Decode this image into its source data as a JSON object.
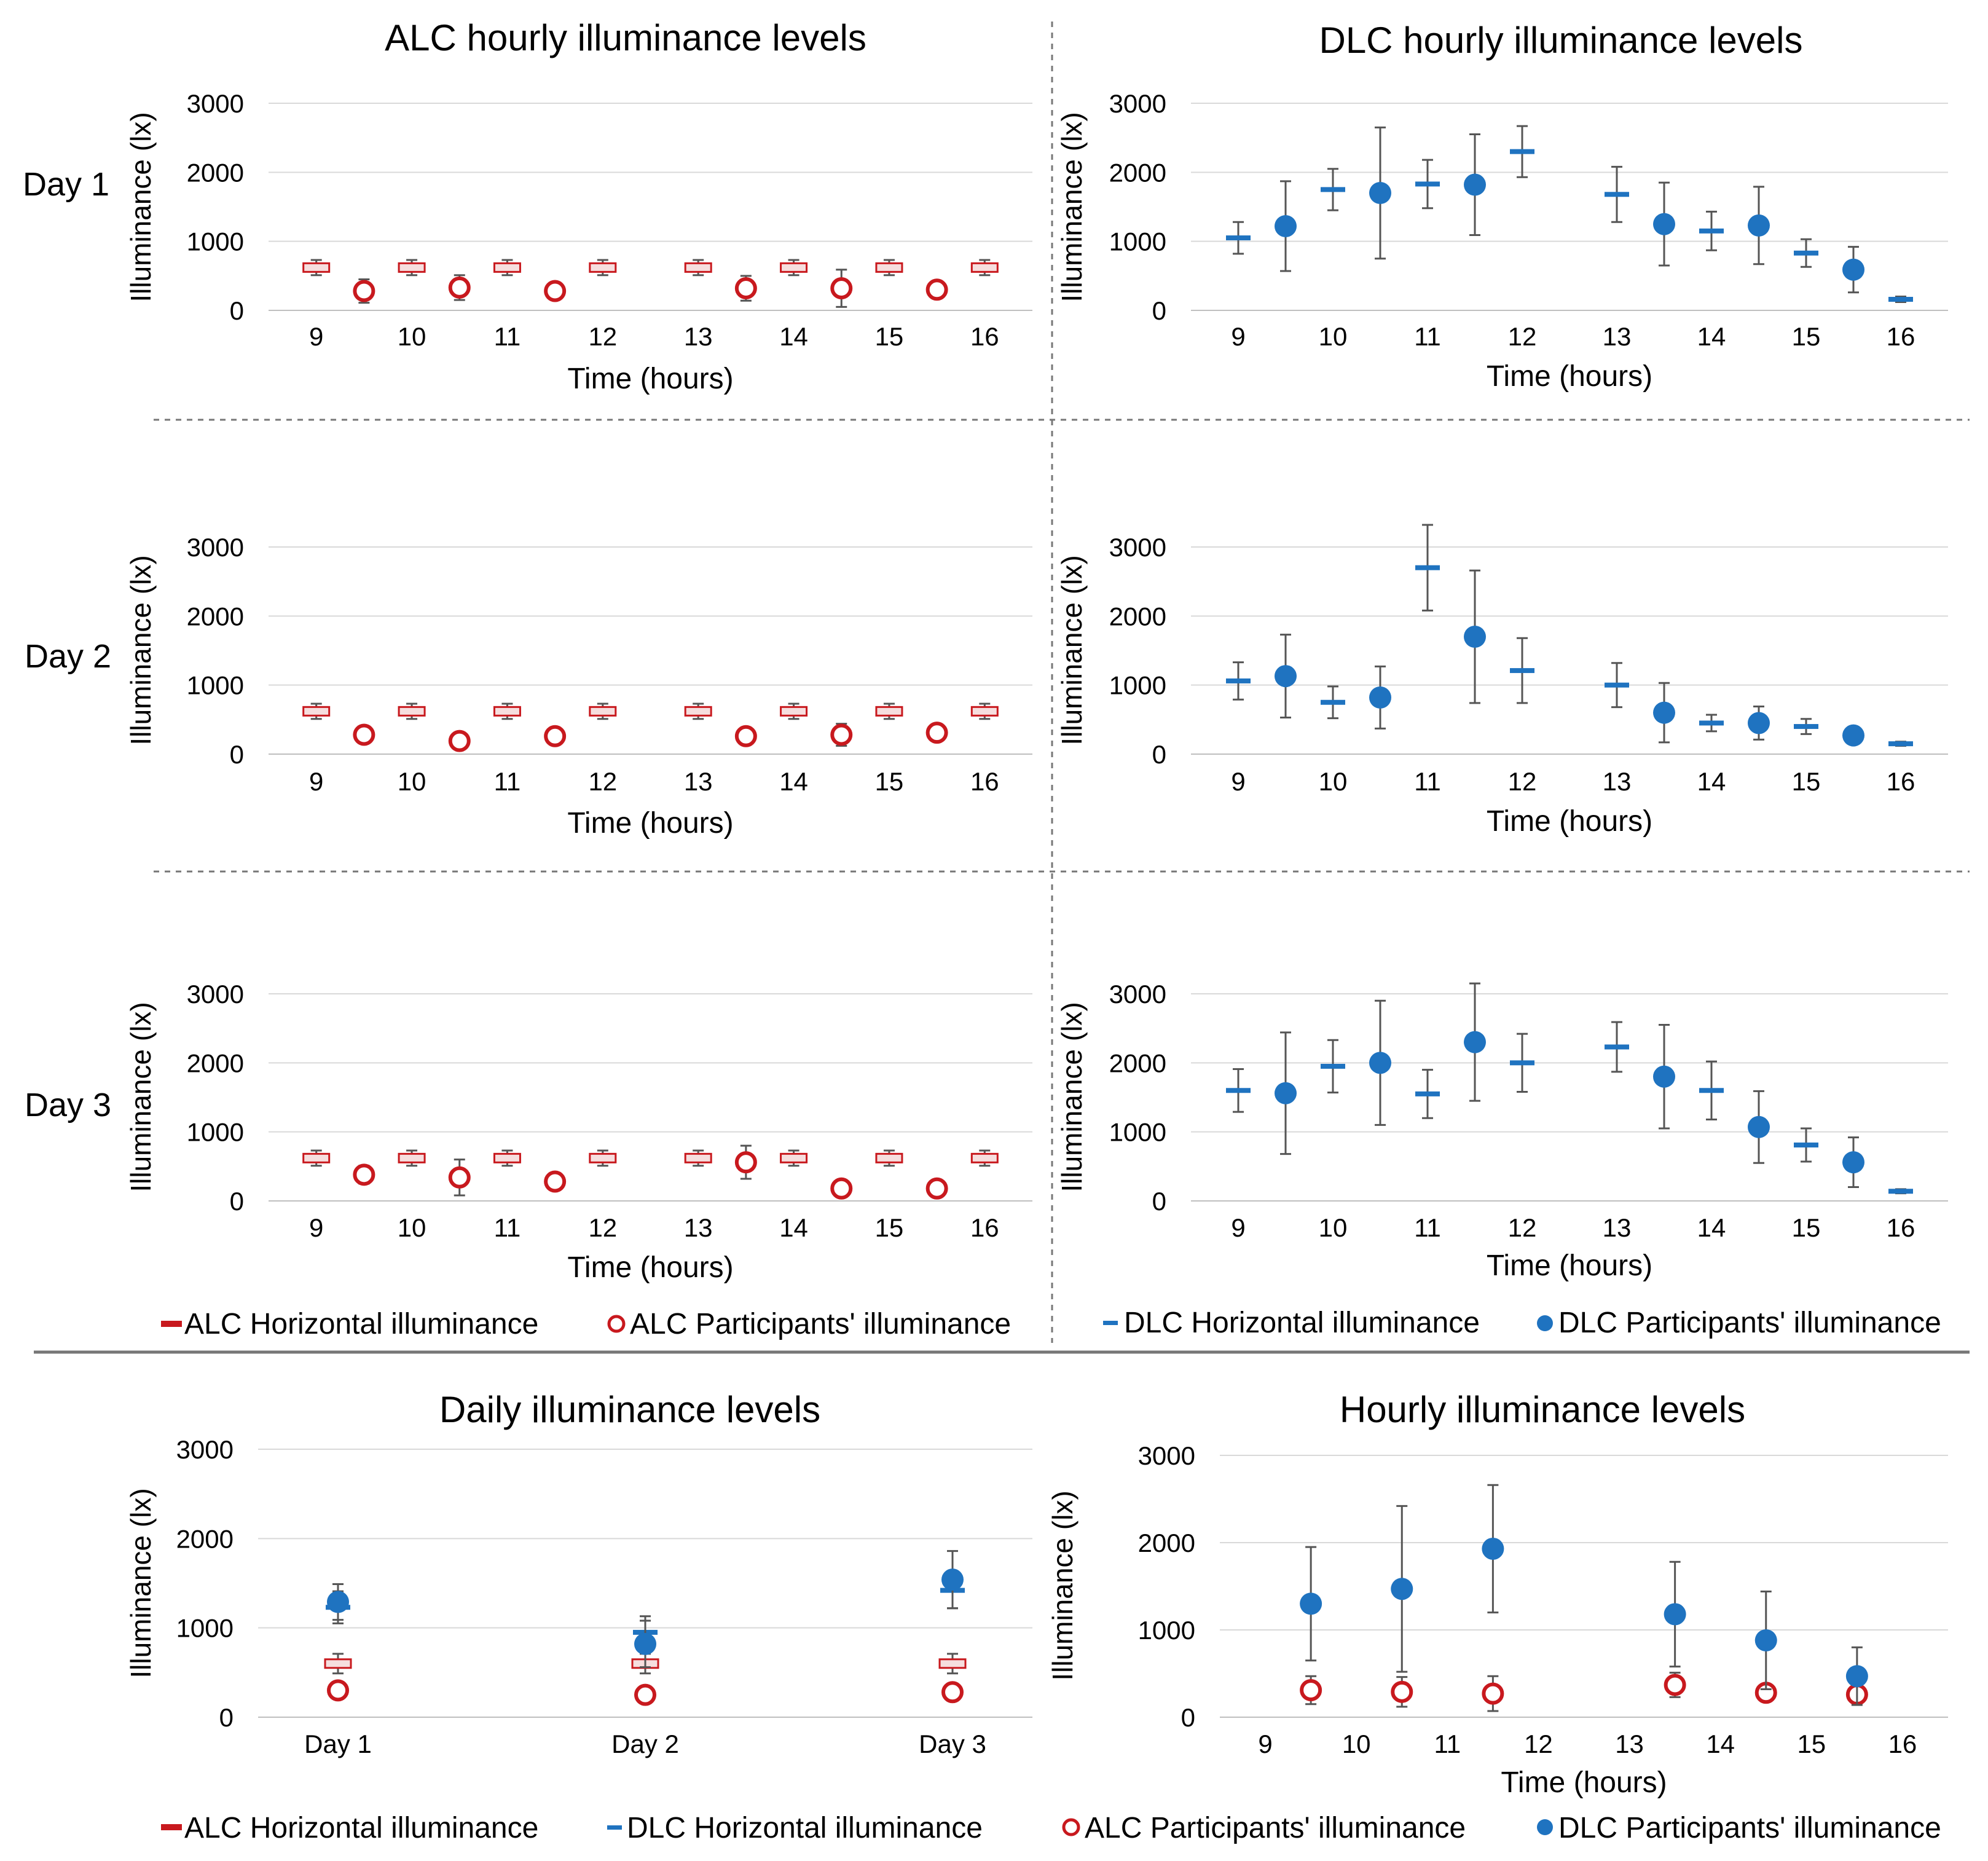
{
  "colors": {
    "alc": "#c8191e",
    "dlc": "#1f73c0",
    "error_bar": "#555555",
    "grid": "#d9d9d9"
  },
  "row_labels": [
    "Day 1",
    "Day 2",
    "Day 3"
  ],
  "column_titles": {
    "alc": "ALC hourly illuminance levels",
    "dlc": "DLC hourly illuminance levels"
  },
  "legend_top": [
    "ALC Horizontal illuminance",
    "ALC Participants' illuminance",
    "DLC Horizontal illuminance",
    "DLC Participants' illuminance"
  ],
  "legend_bottom": [
    "ALC Horizontal illuminance",
    "DLC Horizontal illuminance",
    "ALC Participants' illuminance",
    "DLC Participants' illuminance"
  ],
  "chart_data": [
    {
      "id": "alc_day1",
      "type": "scatter",
      "title": "ALC hourly illuminance levels",
      "row_label": "Day 1",
      "xlabel": "Time (hours)",
      "ylabel": "Illuminance (lx)",
      "xlim": [
        8.5,
        16.5
      ],
      "ylim": [
        0,
        3000
      ],
      "xticks": [
        9,
        10,
        11,
        12,
        13,
        14,
        15,
        16
      ],
      "yticks": [
        0,
        1000,
        2000,
        3000
      ],
      "series": [
        {
          "name": "ALC Horizontal illuminance",
          "marker": "box",
          "x": [
            9,
            10,
            11,
            12,
            13,
            14,
            15,
            16
          ],
          "y": [
            620,
            620,
            620,
            620,
            620,
            620,
            620,
            620
          ],
          "err": [
            110,
            110,
            110,
            110,
            110,
            110,
            110,
            110
          ]
        },
        {
          "name": "ALC Participants' illuminance",
          "marker": "open-circle",
          "x": [
            9.5,
            10.5,
            11.5,
            13.5,
            14.5,
            15.5
          ],
          "y": [
            280,
            330,
            280,
            320,
            320,
            300
          ],
          "err": [
            170,
            180,
            60,
            180,
            270,
            70
          ]
        }
      ]
    },
    {
      "id": "dlc_day1",
      "type": "scatter",
      "title": "DLC hourly illuminance levels",
      "row_label": "Day 1",
      "xlabel": "Time (hours)",
      "ylabel": "Illuminance (lx)",
      "xlim": [
        8.5,
        16.5
      ],
      "ylim": [
        0,
        3000
      ],
      "xticks": [
        9,
        10,
        11,
        12,
        13,
        14,
        15,
        16
      ],
      "yticks": [
        0,
        1000,
        2000,
        3000
      ],
      "series": [
        {
          "name": "DLC Horizontal illuminance",
          "marker": "dash",
          "x": [
            9,
            10,
            11,
            12,
            13,
            14,
            15,
            16
          ],
          "y": [
            1050,
            1750,
            1830,
            2300,
            1680,
            1150,
            830,
            160
          ],
          "err": [
            230,
            300,
            350,
            370,
            400,
            280,
            200,
            40
          ]
        },
        {
          "name": "DLC Participants' illuminance",
          "marker": "filled-circle",
          "x": [
            9.5,
            10.5,
            11.5,
            13.5,
            14.5,
            15.5
          ],
          "y": [
            1220,
            1700,
            1820,
            1250,
            1230,
            590
          ],
          "err": [
            650,
            950,
            730,
            600,
            560,
            330
          ]
        }
      ]
    },
    {
      "id": "alc_day2",
      "type": "scatter",
      "title": "",
      "row_label": "Day 2",
      "xlabel": "Time (hours)",
      "ylabel": "Illuminance (lx)",
      "xlim": [
        8.5,
        16.5
      ],
      "ylim": [
        0,
        3000
      ],
      "xticks": [
        9,
        10,
        11,
        12,
        13,
        14,
        15,
        16
      ],
      "yticks": [
        0,
        1000,
        2000,
        3000
      ],
      "series": [
        {
          "name": "ALC Horizontal illuminance",
          "marker": "box",
          "x": [
            9,
            10,
            11,
            12,
            13,
            14,
            15,
            16
          ],
          "y": [
            620,
            620,
            620,
            620,
            620,
            620,
            620,
            620
          ],
          "err": [
            110,
            110,
            110,
            110,
            110,
            110,
            110,
            110
          ]
        },
        {
          "name": "ALC Participants' illuminance",
          "marker": "open-circle",
          "x": [
            9.5,
            10.5,
            11.5,
            13.5,
            14.5,
            15.5
          ],
          "y": [
            280,
            190,
            260,
            260,
            280,
            310
          ],
          "err": [
            60,
            60,
            60,
            60,
            160,
            60
          ]
        }
      ]
    },
    {
      "id": "dlc_day2",
      "type": "scatter",
      "title": "",
      "row_label": "Day 2",
      "xlabel": "Time (hours)",
      "ylabel": "Illuminance (lx)",
      "xlim": [
        8.5,
        16.5
      ],
      "ylim": [
        0,
        3000
      ],
      "xticks": [
        9,
        10,
        11,
        12,
        13,
        14,
        15,
        16
      ],
      "yticks": [
        0,
        1000,
        2000,
        3000
      ],
      "series": [
        {
          "name": "DLC Horizontal illuminance",
          "marker": "dash",
          "x": [
            9,
            10,
            11,
            12,
            13,
            14,
            15,
            16
          ],
          "y": [
            1060,
            750,
            2700,
            1210,
            1000,
            450,
            400,
            150
          ],
          "err": [
            270,
            230,
            620,
            470,
            320,
            120,
            110,
            30
          ]
        },
        {
          "name": "DLC Participants' illuminance",
          "marker": "filled-circle",
          "x": [
            9.5,
            10.5,
            11.5,
            13.5,
            14.5,
            15.5
          ],
          "y": [
            1130,
            820,
            1700,
            600,
            450,
            270
          ],
          "err": [
            600,
            450,
            960,
            430,
            240,
            120
          ]
        }
      ]
    },
    {
      "id": "alc_day3",
      "type": "scatter",
      "title": "",
      "row_label": "Day 3",
      "xlabel": "Time (hours)",
      "ylabel": "Illuminance (lx)",
      "xlim": [
        8.5,
        16.5
      ],
      "ylim": [
        0,
        3000
      ],
      "xticks": [
        9,
        10,
        11,
        12,
        13,
        14,
        15,
        16
      ],
      "yticks": [
        0,
        1000,
        2000,
        3000
      ],
      "series": [
        {
          "name": "ALC Horizontal illuminance",
          "marker": "box",
          "x": [
            9,
            10,
            11,
            12,
            13,
            14,
            15,
            16
          ],
          "y": [
            620,
            620,
            620,
            620,
            620,
            620,
            620,
            620
          ],
          "err": [
            110,
            110,
            110,
            110,
            110,
            110,
            110,
            110
          ]
        },
        {
          "name": "ALC Participants' illuminance",
          "marker": "open-circle",
          "x": [
            9.5,
            10.5,
            11.5,
            13.5,
            14.5,
            15.5
          ],
          "y": [
            380,
            340,
            280,
            560,
            180,
            180
          ],
          "err": [
            130,
            260,
            110,
            240,
            40,
            40
          ]
        }
      ]
    },
    {
      "id": "dlc_day3",
      "type": "scatter",
      "title": "",
      "row_label": "Day 3",
      "xlabel": "Time (hours)",
      "ylabel": "Illuminance (lx)",
      "xlim": [
        8.5,
        16.5
      ],
      "ylim": [
        0,
        3000
      ],
      "xticks": [
        9,
        10,
        11,
        12,
        13,
        14,
        15,
        16
      ],
      "yticks": [
        0,
        1000,
        2000,
        3000
      ],
      "series": [
        {
          "name": "DLC Horizontal illuminance",
          "marker": "dash",
          "x": [
            9,
            10,
            11,
            12,
            13,
            14,
            15,
            16
          ],
          "y": [
            1600,
            1950,
            1550,
            2000,
            2230,
            1600,
            810,
            140
          ],
          "err": [
            310,
            380,
            350,
            420,
            360,
            420,
            240,
            30
          ]
        },
        {
          "name": "DLC Participants' illuminance",
          "marker": "filled-circle",
          "x": [
            9.5,
            10.5,
            11.5,
            13.5,
            14.5,
            15.5
          ],
          "y": [
            1560,
            2000,
            2300,
            1800,
            1070,
            560
          ],
          "err": [
            880,
            900,
            850,
            750,
            520,
            360
          ]
        }
      ]
    },
    {
      "id": "daily",
      "type": "scatter",
      "title": "Daily illuminance levels",
      "xlabel": "",
      "ylabel": "Illuminance (lx)",
      "categories": [
        "Day 1",
        "Day 2",
        "Day 3"
      ],
      "ylim": [
        0,
        3000
      ],
      "yticks": [
        0,
        1000,
        2000,
        3000
      ],
      "series": [
        {
          "name": "ALC Horizontal illuminance",
          "marker": "box",
          "values": [
            600,
            600,
            600
          ],
          "err": [
            110,
            110,
            110
          ]
        },
        {
          "name": "DLC Horizontal illuminance",
          "marker": "dash",
          "values": [
            1230,
            950,
            1420
          ],
          "err": [
            180,
            180,
            200
          ]
        },
        {
          "name": "ALC Participants' illuminance",
          "marker": "open-circle",
          "values": [
            300,
            250,
            280
          ],
          "err": [
            30,
            30,
            30
          ]
        },
        {
          "name": "DLC Participants' illuminance",
          "marker": "filled-circle",
          "values": [
            1290,
            820,
            1540
          ],
          "err": [
            200,
            260,
            320
          ]
        }
      ]
    },
    {
      "id": "hourly",
      "type": "scatter",
      "title": "Hourly illuminance levels",
      "xlabel": "Time (hours)",
      "ylabel": "Illuminance (lx)",
      "xlim": [
        8.5,
        16.5
      ],
      "ylim": [
        0,
        3000
      ],
      "xticks": [
        9,
        10,
        11,
        12,
        13,
        14,
        15,
        16
      ],
      "yticks": [
        0,
        1000,
        2000,
        3000
      ],
      "series": [
        {
          "name": "ALC Participants' illuminance",
          "marker": "open-circle",
          "x": [
            9.5,
            10.5,
            11.5,
            13.5,
            14.5,
            15.5
          ],
          "y": [
            310,
            290,
            270,
            370,
            280,
            260
          ],
          "err": [
            160,
            170,
            200,
            140,
            60,
            60
          ]
        },
        {
          "name": "DLC Participants' illuminance",
          "marker": "filled-circle",
          "x": [
            9.5,
            10.5,
            11.5,
            13.5,
            14.5,
            15.5
          ],
          "y": [
            1300,
            1470,
            1930,
            1180,
            880,
            470
          ],
          "err": [
            650,
            950,
            730,
            600,
            560,
            330
          ]
        }
      ]
    }
  ]
}
